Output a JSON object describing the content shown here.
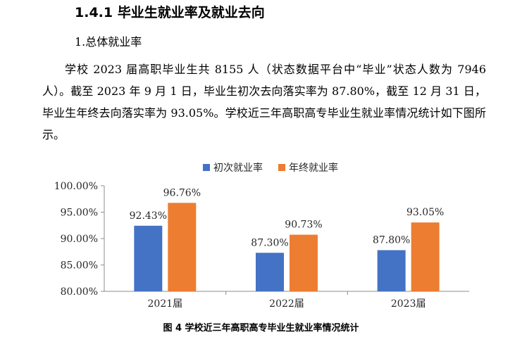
{
  "section": {
    "heading": "1.4.1  毕业生就业率及就业去向",
    "subheading": "1.总体就业率",
    "paragraph": "学校 2023 届高职毕业生共 8155 人（状态数据平台中“毕业”状态人数为 7946 人）。截至 2023 年 9 月 1 日，毕业生初次去向落实率为 87.80%，截至 12 月 31 日，毕业生年终去向落实率为 93.05%。学校近三年高职高专毕业生就业率情况统计如下图所示。"
  },
  "chart_data": {
    "type": "bar",
    "categories": [
      "2021届",
      "2022届",
      "2023届"
    ],
    "series": [
      {
        "name": "初次就业率",
        "values": [
          92.43,
          87.3,
          87.8
        ],
        "labels": [
          "92.43%",
          "87.30%",
          "87.80%"
        ],
        "color": "#4472C4"
      },
      {
        "name": "年终就业率",
        "values": [
          96.76,
          90.73,
          93.05
        ],
        "labels": [
          "96.76%",
          "90.73%",
          "93.05%"
        ],
        "color": "#ED7D31"
      }
    ],
    "y_ticks": [
      80,
      85,
      90,
      95,
      100
    ],
    "y_tick_labels": [
      "80.00%",
      "85.00%",
      "90.00%",
      "95.00%",
      "100.00%"
    ],
    "ylim": [
      80,
      100
    ],
    "grid": false,
    "legend_position": "top"
  },
  "caption": "图 4  学校近三年高职高专毕业生就业率情况统计"
}
